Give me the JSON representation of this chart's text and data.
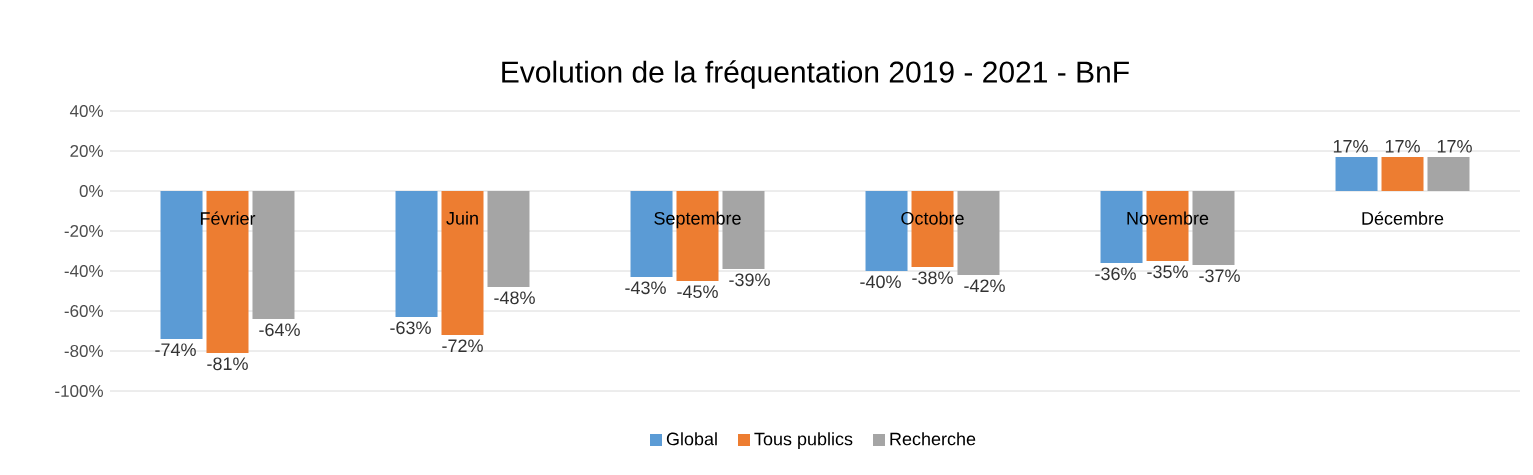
{
  "chart_data": {
    "type": "bar",
    "title": "Evolution de la fréquentation 2019 - 2021 - BnF",
    "categories": [
      "Février",
      "Juin",
      "Septembre",
      "Octobre",
      "Novembre",
      "Décembre"
    ],
    "series": [
      {
        "name": "Global",
        "color": "#5b9bd5",
        "values": [
          -74,
          -63,
          -43,
          -40,
          -36,
          17
        ],
        "value_labels": [
          "-74%",
          "-63%",
          "-43%",
          "-40%",
          "-36%",
          "17%"
        ]
      },
      {
        "name": "Tous publics",
        "color": "#ed7d31",
        "values": [
          -81,
          -72,
          -45,
          -38,
          -35,
          17
        ],
        "value_labels": [
          "-81%",
          "-72%",
          "-45%",
          "-38%",
          "-35%",
          "17%"
        ]
      },
      {
        "name": "Recherche",
        "color": "#a5a5a5",
        "values": [
          -64,
          -48,
          -39,
          -42,
          -37,
          17
        ],
        "value_labels": [
          "-64%",
          "-48%",
          "-39%",
          "-42%",
          "-37%",
          "17%"
        ]
      }
    ],
    "ylim": [
      -100,
      40
    ],
    "yticks": [
      {
        "value": -100,
        "label": "-100%"
      },
      {
        "value": -80,
        "label": "-80%"
      },
      {
        "value": -60,
        "label": "-60%"
      },
      {
        "value": -40,
        "label": "-40%"
      },
      {
        "value": -20,
        "label": "-20%"
      },
      {
        "value": 0,
        "label": "0%"
      },
      {
        "value": 20,
        "label": "20%"
      },
      {
        "value": 40,
        "label": "40%"
      }
    ],
    "grid": "y",
    "legend": "bottom"
  }
}
